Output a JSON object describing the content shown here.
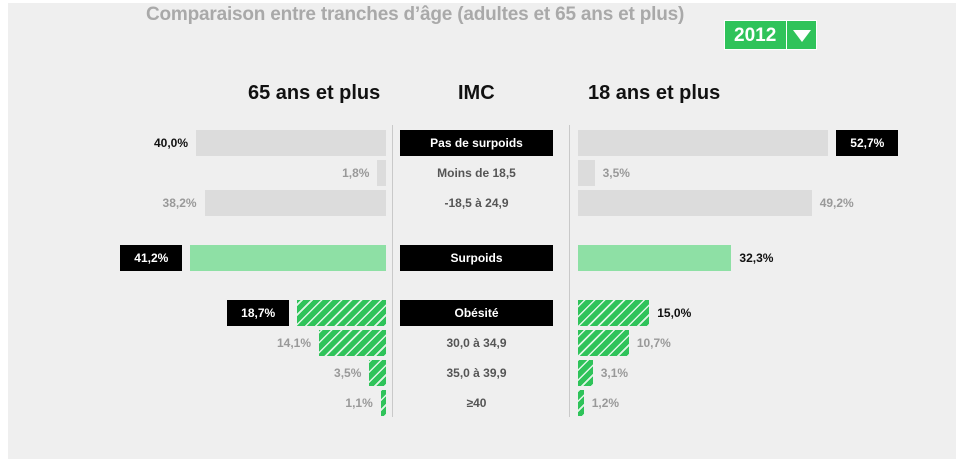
{
  "header": {
    "title": "Comparaison entre tranches d’âge (adultes et 65 ans et plus)",
    "year_selected": "2012",
    "dropdown_icon": "triangle-down-icon"
  },
  "columns": {
    "left": "65 ans et plus",
    "middle": "IMC",
    "right": "18 ans et plus"
  },
  "colors": {
    "accent_green": "#2fc35a",
    "light_green": "#8ee0a5",
    "gray_bar": "#dcdcdc",
    "panel_bg": "#efefef"
  },
  "rows": [
    {
      "key": "pas_de_surpoids",
      "label": "Pas de surpoids",
      "type": "header",
      "style": "gray",
      "left": {
        "value": 40.0,
        "label": "40,0%"
      },
      "right": {
        "value": 52.7,
        "label": "52,7%"
      }
    },
    {
      "key": "moins_18_5",
      "label": "Moins de 18,5",
      "type": "sub",
      "style": "gray",
      "left": {
        "value": 1.8,
        "label": "1,8%"
      },
      "right": {
        "value": 3.5,
        "label": "3,5%"
      }
    },
    {
      "key": "18_5_24_9",
      "label": "-18,5 à 24,9",
      "type": "sub",
      "style": "gray",
      "left": {
        "value": 38.2,
        "label": "38,2%"
      },
      "right": {
        "value": 49.2,
        "label": "49,2%"
      }
    },
    {
      "key": "surpoids",
      "label": "Surpoids",
      "type": "header",
      "style": "green",
      "left": {
        "value": 41.2,
        "label": "41,2%"
      },
      "right": {
        "value": 32.3,
        "label": "32,3%"
      }
    },
    {
      "key": "obesite",
      "label": "Obésité",
      "type": "header",
      "style": "hatch",
      "left": {
        "value": 18.7,
        "label": "18,7%"
      },
      "right": {
        "value": 15.0,
        "label": "15,0%"
      }
    },
    {
      "key": "30_34_9",
      "label": "30,0 à 34,9",
      "type": "sub",
      "style": "hatch",
      "left": {
        "value": 14.1,
        "label": "14,1%"
      },
      "right": {
        "value": 10.7,
        "label": "10,7%"
      }
    },
    {
      "key": "35_39_9",
      "label": "35,0 à 39,9",
      "type": "sub",
      "style": "hatch",
      "left": {
        "value": 3.5,
        "label": "3,5%"
      },
      "right": {
        "value": 3.1,
        "label": "3,1%"
      }
    },
    {
      "key": "ge_40",
      "label": "≥40",
      "type": "sub",
      "style": "hatch",
      "left": {
        "value": 1.1,
        "label": "1,1%"
      },
      "right": {
        "value": 1.2,
        "label": "1,2%"
      }
    }
  ]
}
